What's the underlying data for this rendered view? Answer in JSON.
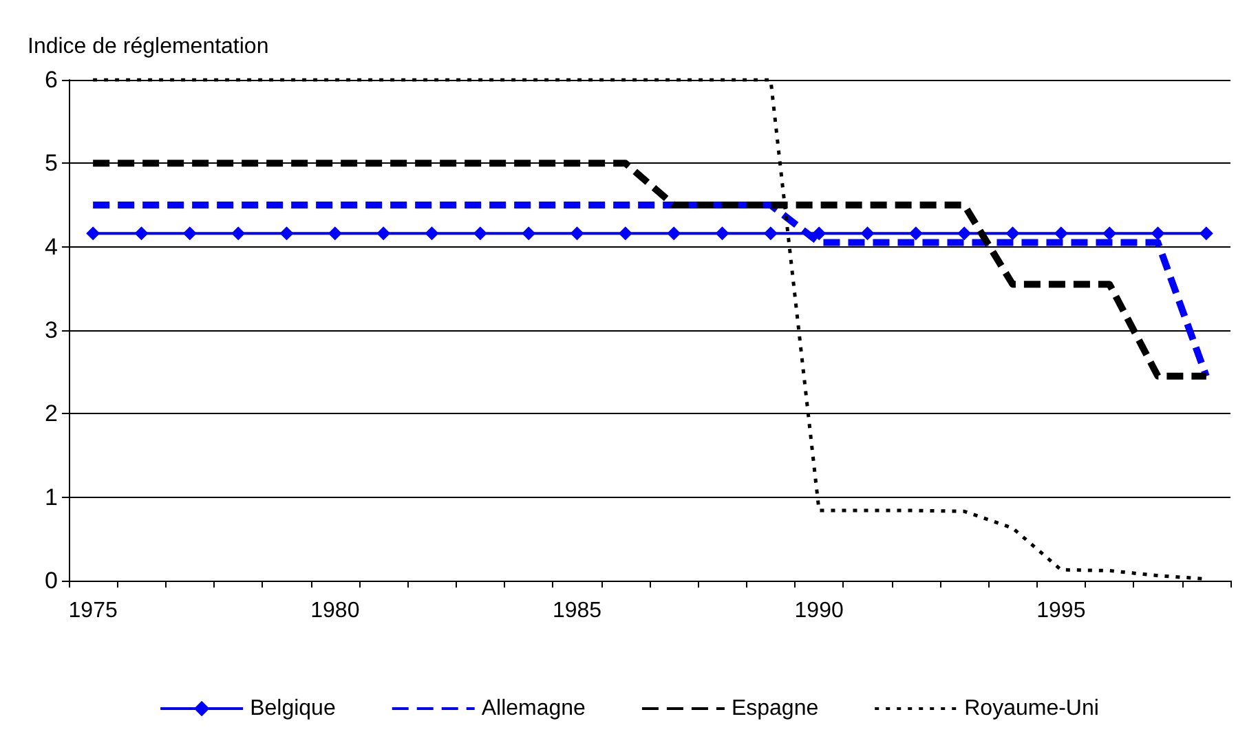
{
  "chart_data": {
    "type": "line",
    "ylabel": "Indice de réglementation",
    "categories": [
      "1975",
      null,
      null,
      null,
      null,
      "1980",
      null,
      null,
      null,
      null,
      "1985",
      null,
      null,
      null,
      null,
      "1990",
      null,
      null,
      null,
      null,
      "1995",
      null,
      null,
      null
    ],
    "series": [
      {
        "name": "Belgique",
        "color": "#0000ff",
        "marker": "diamond",
        "line_style": "solid",
        "values": [
          4.16,
          4.16,
          4.16,
          4.16,
          4.16,
          4.16,
          4.16,
          4.16,
          4.16,
          4.16,
          4.16,
          4.16,
          4.16,
          4.16,
          4.16,
          4.16,
          4.16,
          4.16,
          4.16,
          4.16,
          4.16,
          4.16,
          4.16,
          4.16
        ]
      },
      {
        "name": "Allemagne",
        "color": "#0000ff",
        "marker": "none",
        "line_style": "dashed",
        "values": [
          4.5,
          4.5,
          4.5,
          4.5,
          4.5,
          4.5,
          4.5,
          4.5,
          4.5,
          4.5,
          4.5,
          4.5,
          4.5,
          4.5,
          4.5,
          4.05,
          4.05,
          4.05,
          4.05,
          4.05,
          4.05,
          4.05,
          4.05,
          2.45
        ]
      },
      {
        "name": "Espagne",
        "color": "#000000",
        "marker": "none",
        "line_style": "dashed",
        "values": [
          5,
          5,
          5,
          5,
          5,
          5,
          5,
          5,
          5,
          5,
          5,
          5,
          4.5,
          4.5,
          4.5,
          4.5,
          4.5,
          4.5,
          4.5,
          3.55,
          3.55,
          3.55,
          2.45,
          2.45
        ]
      },
      {
        "name": "Royaume-Uni",
        "color": "#000000",
        "marker": "none",
        "line_style": "dotted",
        "values": [
          6,
          6,
          6,
          6,
          6,
          6,
          6,
          6,
          6,
          6,
          6,
          6,
          6,
          6,
          6,
          0.84,
          0.84,
          0.84,
          0.83,
          0.63,
          0.13,
          0.12,
          0.06,
          0.02
        ]
      }
    ],
    "ylim": [
      0,
      6
    ],
    "yticks": [
      0,
      1,
      2,
      3,
      4,
      5,
      6
    ],
    "grid": "y",
    "legend": "bottom"
  }
}
